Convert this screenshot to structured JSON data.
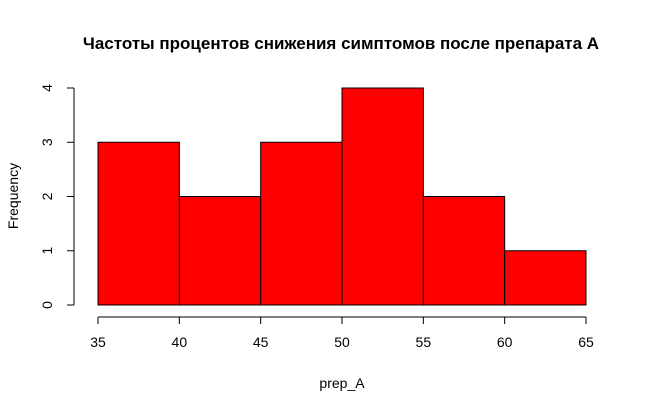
{
  "chart_data": {
    "type": "bar",
    "subtype": "histogram",
    "title": "Частоты процентов снижения симптомов после препарата А",
    "xlabel": "prep_A",
    "ylabel": "Frequency",
    "bins": [
      {
        "from": 35,
        "to": 40,
        "count": 3
      },
      {
        "from": 40,
        "to": 45,
        "count": 2
      },
      {
        "from": 45,
        "to": 50,
        "count": 3
      },
      {
        "from": 50,
        "to": 55,
        "count": 4
      },
      {
        "from": 55,
        "to": 60,
        "count": 2
      },
      {
        "from": 60,
        "to": 65,
        "count": 1
      }
    ],
    "xlim": [
      35,
      65
    ],
    "ylim": [
      0,
      4
    ],
    "x_ticks": [
      "35",
      "40",
      "45",
      "50",
      "55",
      "60",
      "65"
    ],
    "y_ticks": [
      "0",
      "1",
      "2",
      "3",
      "4"
    ],
    "bar_color": "#ff0000",
    "grid": false,
    "legend": "none"
  }
}
